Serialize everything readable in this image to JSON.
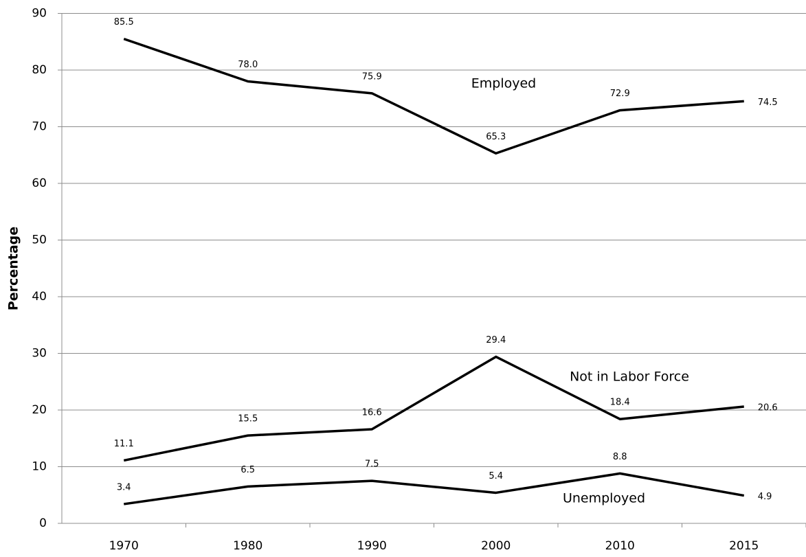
{
  "chart_data": {
    "type": "line",
    "y_label": "Percentage",
    "categories": [
      "1970",
      "1980",
      "1990",
      "2000",
      "2010",
      "2015"
    ],
    "series": [
      {
        "name": "Employed",
        "color": "#000000",
        "values": [
          85.5,
          78,
          75.9,
          65.3,
          72.9,
          74.5
        ],
        "value_labels": [
          "85.5",
          "78.0",
          "75.9",
          "65.3",
          "72.9",
          "74.5"
        ]
      },
      {
        "name": "Not in Labor Force",
        "color": "#000000",
        "values": [
          11.1,
          15.5,
          16.6,
          29.4,
          18.4,
          20.6
        ],
        "value_labels": [
          "11.1",
          "15.5",
          "16.6",
          "29.4",
          "18.4",
          "20.6"
        ]
      },
      {
        "name": "Unemployed",
        "color": "#000000",
        "values": [
          3.4,
          6.5,
          7.5,
          5.4,
          8.8,
          4.9
        ],
        "value_labels": [
          "3.4",
          "6.5",
          "7.5",
          "5.4",
          "8.8",
          "4.9"
        ]
      }
    ],
    "ylim": [
      0,
      90
    ],
    "yticks": [
      0,
      10,
      20,
      30,
      40,
      50,
      60,
      70,
      80,
      90
    ],
    "grid": true
  }
}
